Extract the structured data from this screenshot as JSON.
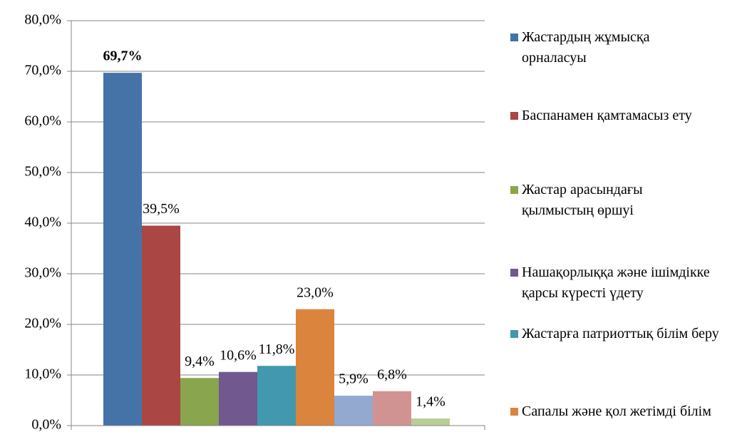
{
  "chart_data": {
    "type": "bar",
    "series": [
      {
        "name": "Жастардың жұмысқа орналасуы",
        "color": "#4572a7",
        "values": [
          69.7
        ],
        "value_labels": [
          "69,7%"
        ]
      },
      {
        "name": "Баспанамен қамтамасыз ету",
        "color": "#aa4643",
        "values": [
          39.5
        ],
        "value_labels": [
          "39,5%"
        ]
      },
      {
        "name": "Жастар арасындағы қылмыстың өршуі",
        "color": "#89a54e",
        "values": [
          9.4
        ],
        "value_labels": [
          "9,4%"
        ]
      },
      {
        "name": "Нашақорлыққа және ішімдікке қарсы күресті үдету",
        "color": "#71588f",
        "values": [
          10.6
        ],
        "value_labels": [
          "10,6%"
        ]
      },
      {
        "name": "Жастарға патриоттық білім беру",
        "color": "#4198af",
        "values": [
          11.8
        ],
        "value_labels": [
          "11,8%"
        ]
      },
      {
        "name": "Сапалы және қол жетімді білім",
        "color": "#db843d",
        "values": [
          23.0
        ],
        "value_labels": [
          "23,0%"
        ]
      },
      {
        "color": "#93a9cf",
        "values": [
          5.9
        ],
        "value_labels": [
          "5,9%"
        ]
      },
      {
        "color": "#d19392",
        "values": [
          6.8
        ],
        "value_labels": [
          "6,8%"
        ]
      },
      {
        "color": "#b9cd96",
        "values": [
          1.4
        ],
        "value_labels": [
          "1,4%"
        ]
      }
    ],
    "ylim": [
      0,
      80
    ],
    "yticks": [
      {
        "value": 0,
        "label": "0,0%"
      },
      {
        "value": 10,
        "label": "10,0%"
      },
      {
        "value": 20,
        "label": "20,0%"
      },
      {
        "value": 30,
        "label": "30,0%"
      },
      {
        "value": 40,
        "label": "40,0%"
      },
      {
        "value": 50,
        "label": "50,0%"
      },
      {
        "value": 60,
        "label": "60,0%"
      },
      {
        "value": 70,
        "label": "70,0%"
      },
      {
        "value": 80,
        "label": "80,0%"
      }
    ],
    "grid": true,
    "legend": "right"
  }
}
